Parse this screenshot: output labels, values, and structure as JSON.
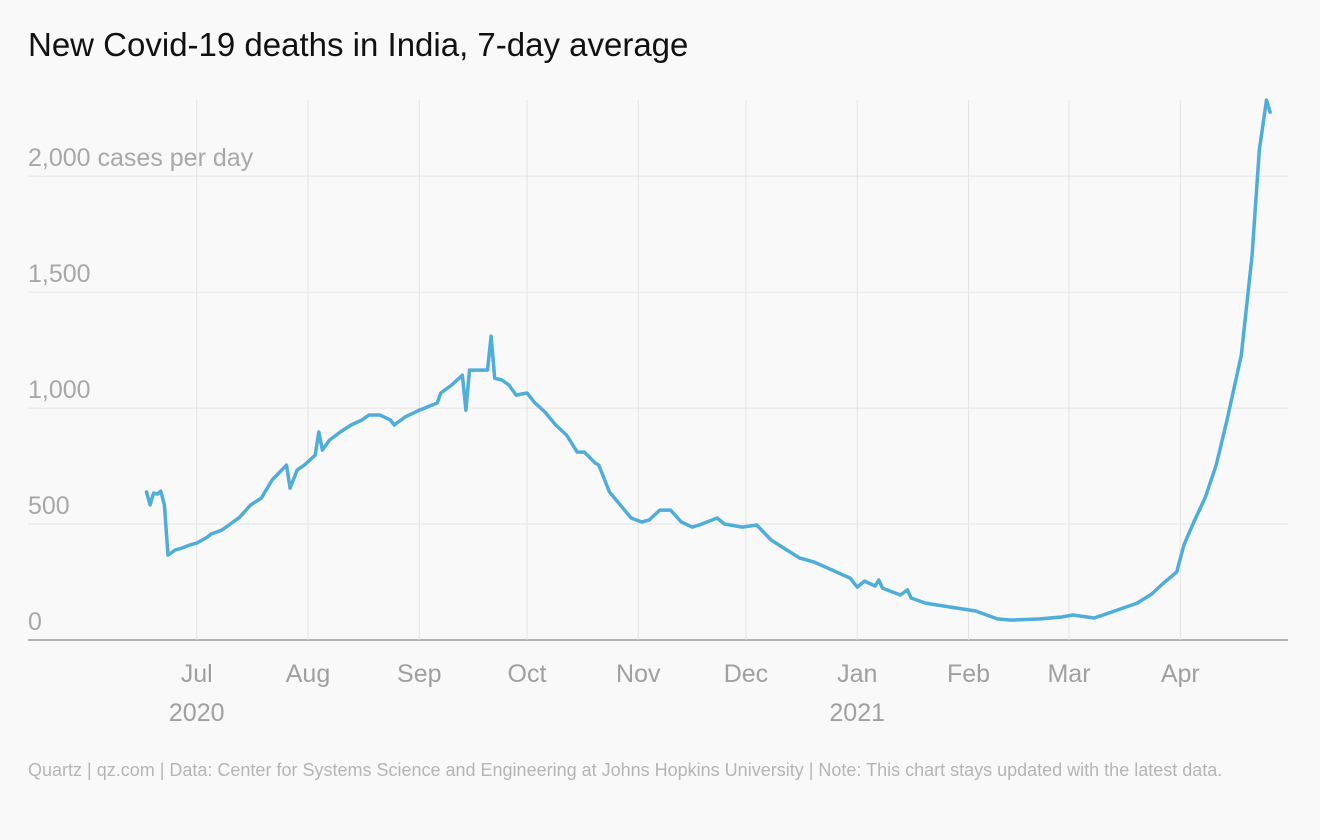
{
  "chart_data": {
    "type": "line",
    "title": "New Covid-19 deaths in India, 7-day average",
    "source": "Quartz | qz.com | Data: Center for Systems Science and Engineering at Johns Hopkins University | Note: This chart stays updated with the latest data.",
    "xlim": [
      135,
      486
    ],
    "xticks": [
      {
        "value": 182,
        "label": "Jul"
      },
      {
        "value": 213,
        "label": "Aug"
      },
      {
        "value": 244,
        "label": "Sep"
      },
      {
        "value": 274,
        "label": "Oct"
      },
      {
        "value": 305,
        "label": "Nov"
      },
      {
        "value": 335,
        "label": "Dec"
      },
      {
        "value": 366,
        "label": "Jan"
      },
      {
        "value": 397,
        "label": "Feb"
      },
      {
        "value": 425,
        "label": "Mar"
      },
      {
        "value": 456,
        "label": "Apr"
      }
    ],
    "year_labels": [
      {
        "value": 182,
        "label": "2020"
      },
      {
        "value": 366,
        "label": "2021"
      }
    ],
    "ylim": [
      0,
      2350
    ],
    "yticks": [
      0,
      500,
      {
        "value": 1000,
        "label": "1,000"
      },
      {
        "value": 1500,
        "label": "1,500"
      },
      {
        "value": 2000,
        "label": "2,000 cases per day"
      }
    ],
    "grid": true,
    "series": [
      {
        "name": "New deaths",
        "color": "#4fadd9",
        "x": [
          168,
          169,
          170,
          171,
          172,
          173,
          174,
          176,
          178,
          180,
          182,
          185,
          186,
          189,
          191,
          194,
          197,
          200,
          203,
          207,
          208,
          210,
          212,
          215,
          216,
          217,
          219,
          222,
          225,
          228,
          230,
          233,
          236,
          237,
          240,
          244,
          249,
          250,
          253,
          256,
          257,
          258,
          261,
          263,
          264,
          265,
          267,
          269,
          271,
          274,
          276,
          279,
          282,
          285,
          288,
          290,
          293,
          294,
          297,
          300,
          303,
          306,
          308,
          311,
          314,
          317,
          320,
          322,
          327,
          329,
          334,
          338,
          342,
          346,
          350,
          354,
          359,
          364,
          366,
          368,
          371,
          372,
          373,
          378,
          380,
          381,
          385,
          392,
          399,
          405,
          409,
          417,
          423,
          426,
          432,
          437,
          444,
          448,
          451,
          455,
          457,
          460,
          463,
          466,
          469,
          473,
          476,
          478,
          480,
          481
        ],
        "values": [
          638,
          582,
          634,
          629,
          642,
          582,
          366,
          388,
          397,
          409,
          418,
          444,
          457,
          474,
          496,
          530,
          582,
          612,
          690,
          754,
          655,
          733,
          754,
          797,
          897,
          819,
          862,
          897,
          927,
          948,
          970,
          970,
          948,
          927,
          961,
          991,
          1022,
          1065,
          1099,
          1142,
          991,
          1164,
          1164,
          1164,
          1310,
          1129,
          1121,
          1099,
          1056,
          1065,
          1026,
          983,
          927,
          884,
          810,
          810,
          763,
          754,
          638,
          582,
          526,
          509,
          517,
          560,
          560,
          509,
          487,
          496,
          526,
          500,
          487,
          496,
          431,
          392,
          353,
          336,
          302,
          267,
          228,
          254,
          233,
          259,
          224,
          194,
          216,
          181,
          159,
          142,
          125,
          91,
          86,
          91,
          99,
          108,
          95,
          121,
          159,
          198,
          241,
          293,
          409,
          517,
          616,
          754,
          948,
          1228,
          1659,
          2112,
          2328,
          2276
        ]
      }
    ]
  }
}
